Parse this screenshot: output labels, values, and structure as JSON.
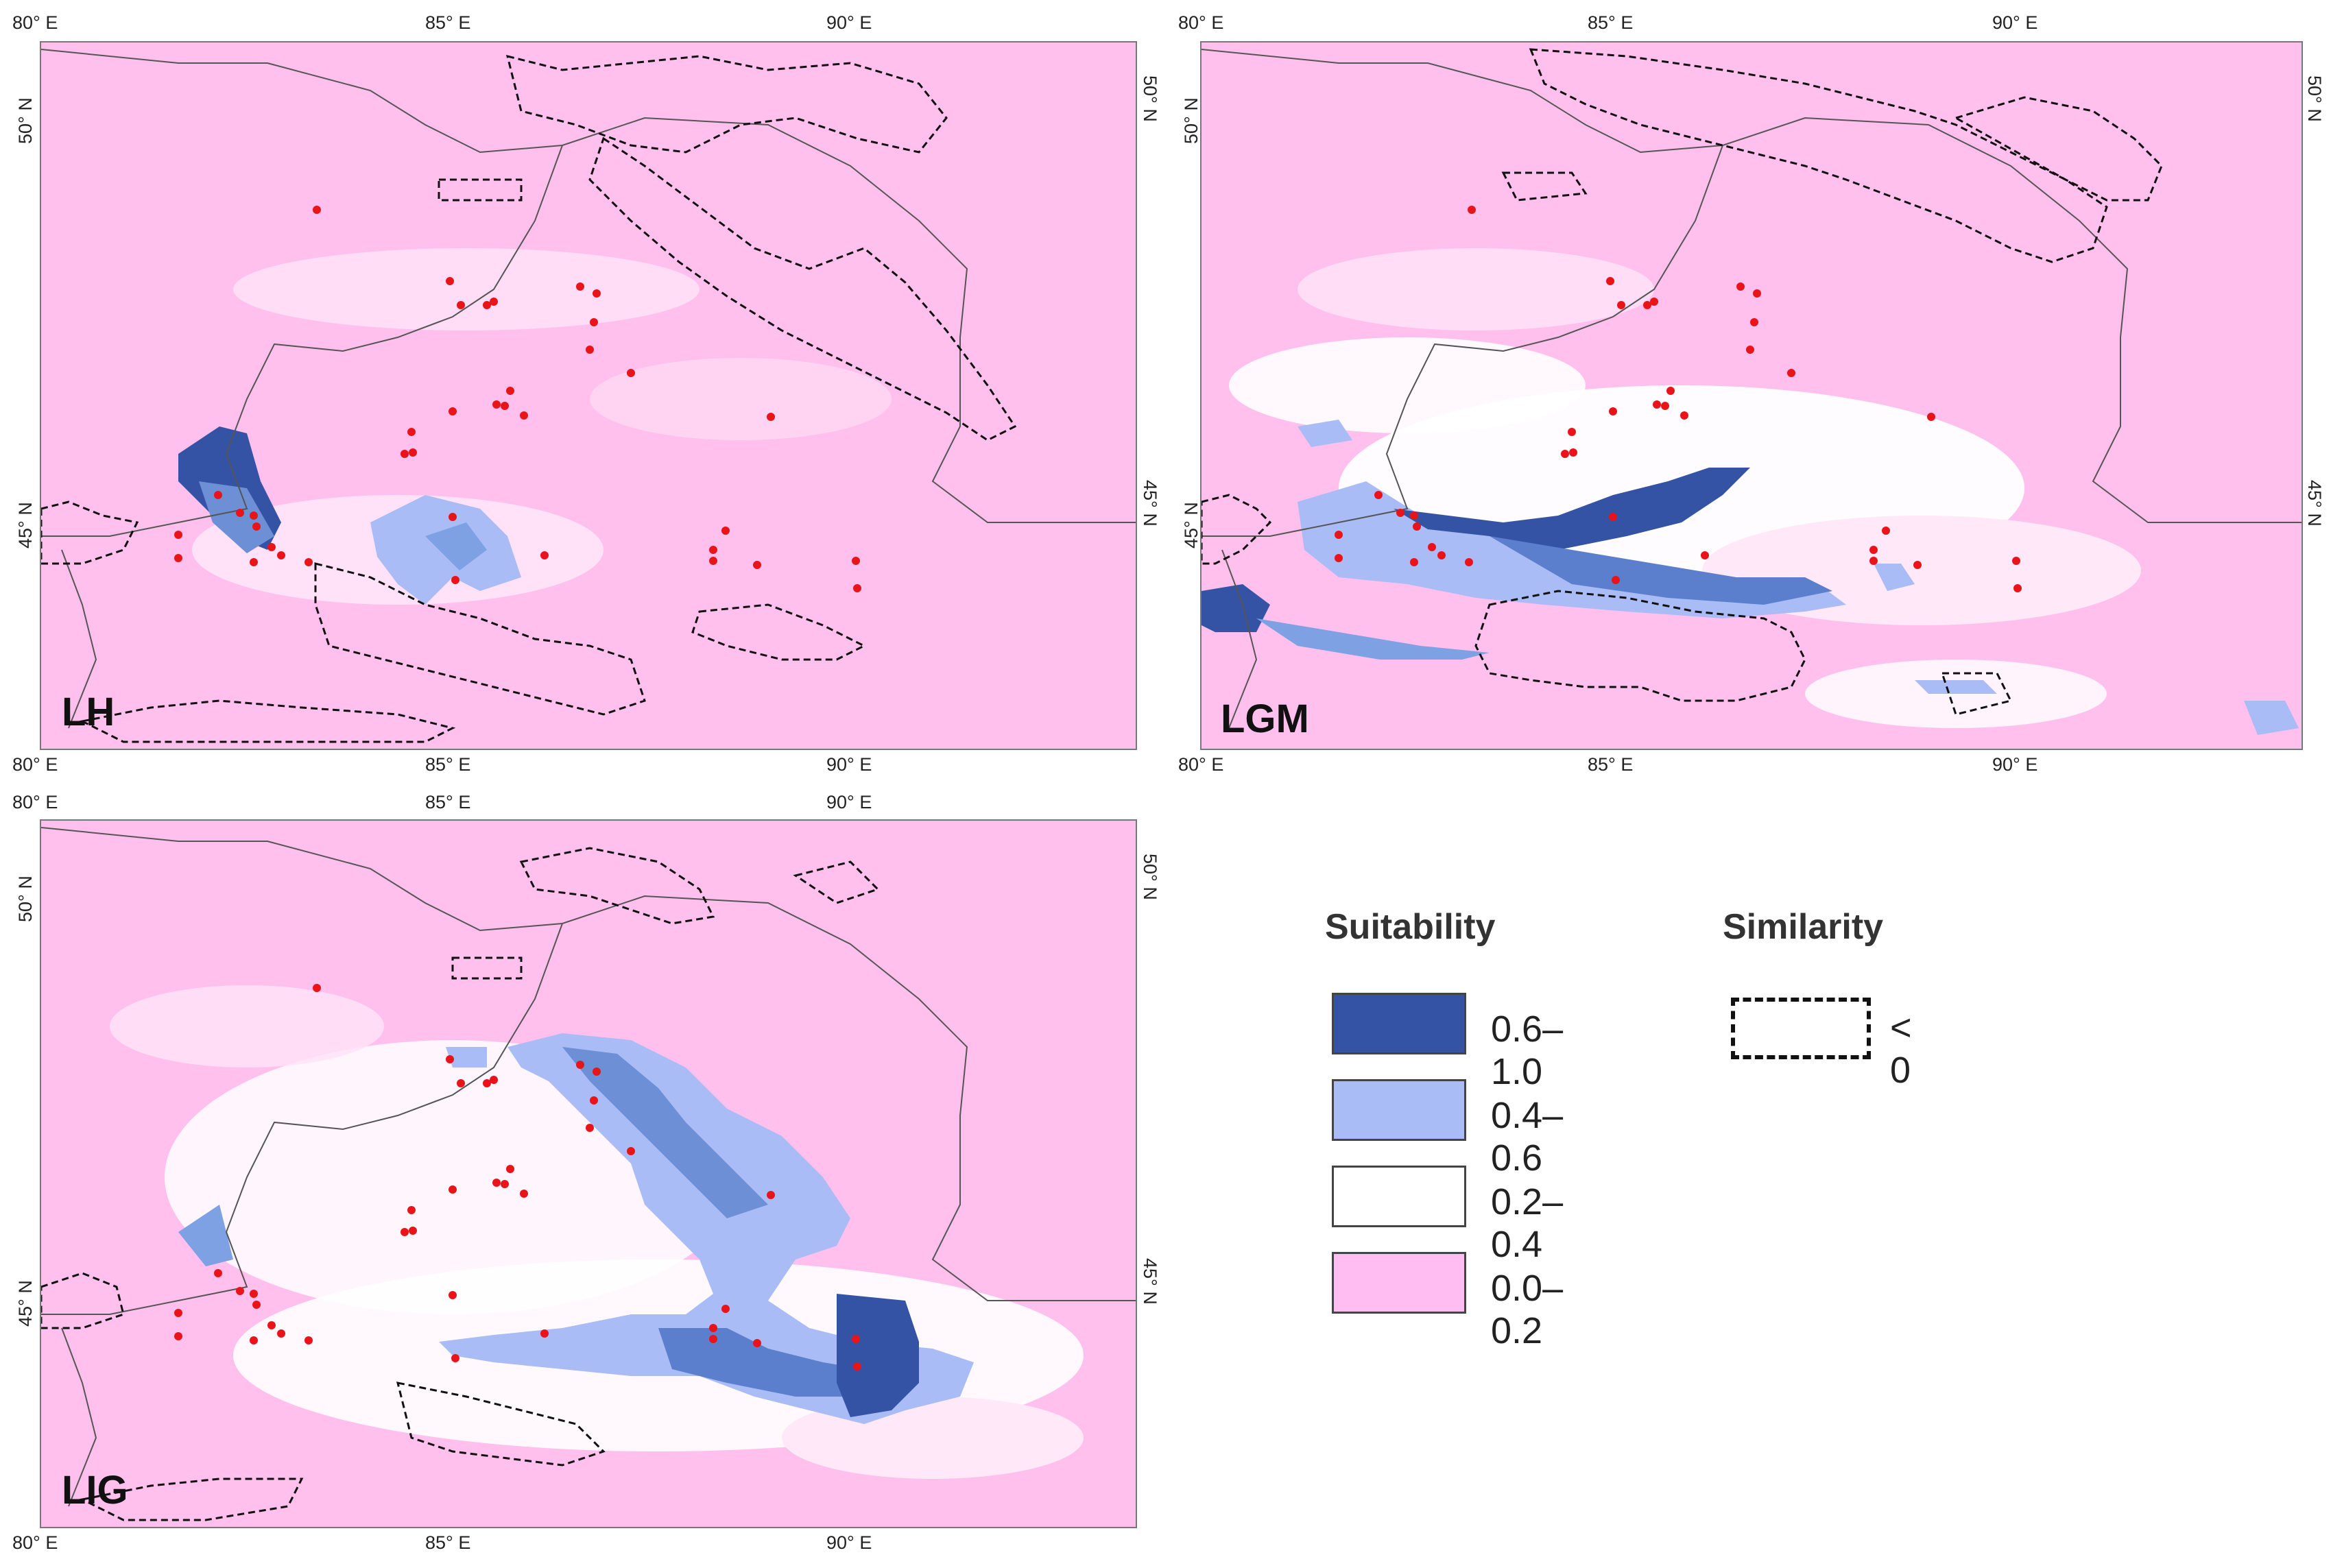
{
  "panels": [
    {
      "id": "LH",
      "label": "LH"
    },
    {
      "id": "LGM",
      "label": "LGM"
    },
    {
      "id": "LIG",
      "label": "LIG"
    }
  ],
  "axes": {
    "lon_ticks": [
      "80° E",
      "85° E",
      "90° E"
    ],
    "lat_ticks": [
      "50° N",
      "45° N"
    ]
  },
  "legend": {
    "suitability_title": "Suitability",
    "similarity_title": "Similarity",
    "classes": [
      {
        "label": "0.6–1.0",
        "color": "#3453a4"
      },
      {
        "label": "0.4–0.6",
        "color": "#a9bcf5"
      },
      {
        "label": "0.2–0.4",
        "color": "#ffffff"
      },
      {
        "label": "0.0–0.2",
        "color": "#ffbdf2"
      }
    ],
    "similarity_label": "< 0"
  },
  "colors": {
    "background_low": "#ffc0ee",
    "occurrence_points": "#e8141a",
    "border_lines": "#555555"
  }
}
